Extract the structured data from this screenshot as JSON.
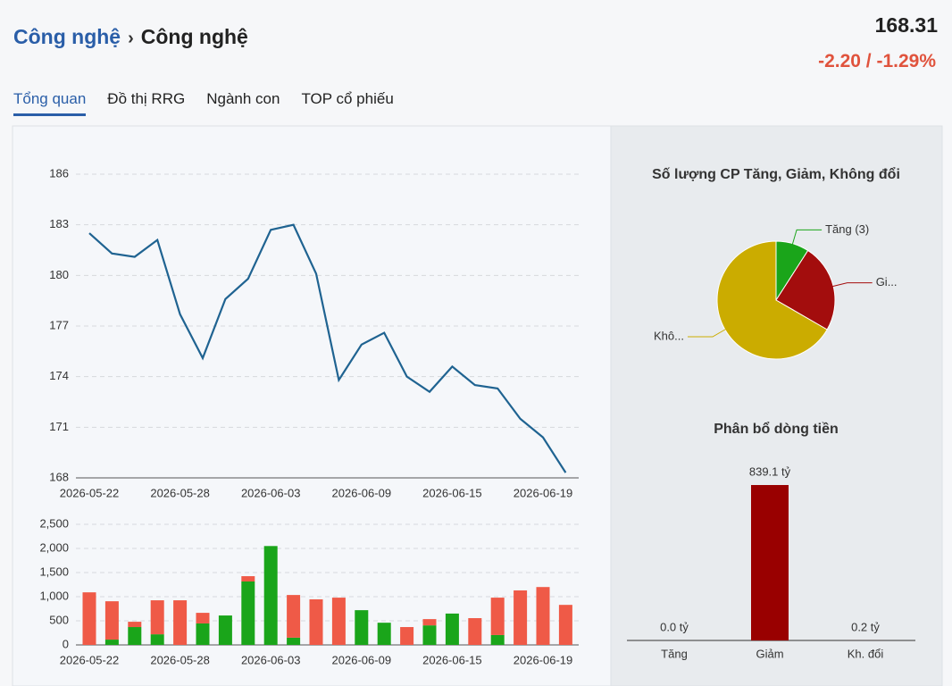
{
  "header": {
    "breadcrumb": [
      "Công nghệ",
      "Công nghệ"
    ],
    "price": "168.31",
    "change": "-2.20 / -1.29%"
  },
  "tabs": [
    "Tổng quan",
    "Đồ thị RRG",
    "Ngành con",
    "TOP cổ phiếu"
  ],
  "chart_data": [
    {
      "type": "line",
      "categories": [
        "2026-05-22",
        null,
        null,
        null,
        "2026-05-28",
        null,
        null,
        null,
        "2026-06-03",
        null,
        null,
        null,
        "2026-06-09",
        null,
        null,
        null,
        "2026-06-15",
        null,
        null,
        null,
        "2026-06-19",
        null
      ],
      "values": [
        182.5,
        181.3,
        181.1,
        182.1,
        177.7,
        175.1,
        178.6,
        179.8,
        182.7,
        183.0,
        180.1,
        173.8,
        175.9,
        176.6,
        174.0,
        173.1,
        174.6,
        173.5,
        173.3,
        171.5,
        170.4,
        168.31
      ],
      "color": "#1f6391",
      "ylim": [
        168,
        186
      ],
      "yticks": [
        168,
        171,
        174,
        177,
        180,
        183,
        186
      ],
      "grid": true
    },
    {
      "type": "stacked-bar",
      "categories": [
        "2026-05-22",
        null,
        null,
        null,
        "2026-05-28",
        null,
        null,
        null,
        "2026-06-03",
        null,
        null,
        null,
        "2026-06-09",
        null,
        null,
        null,
        "2026-06-15",
        null,
        null,
        null,
        "2026-06-19",
        null
      ],
      "series": [
        {
          "color": "#1aa51a",
          "values": [
            0,
            110,
            370,
            220,
            0,
            445,
            610,
            1315,
            2050,
            150,
            0,
            0,
            720,
            460,
            0,
            405,
            650,
            0,
            205,
            0,
            0,
            0
          ]
        },
        {
          "color": "#ef5a47",
          "values": [
            1090,
            795,
            110,
            705,
            925,
            220,
            0,
            110,
            0,
            885,
            945,
            980,
            0,
            0,
            370,
            130,
            0,
            555,
            775,
            1130,
            1200,
            830
          ]
        }
      ],
      "ylim": [
        0,
        2500
      ],
      "yticks": [
        0,
        500,
        {
          "value": 1000,
          "label": "1,000"
        },
        {
          "value": 1500,
          "label": "1,500"
        },
        {
          "value": 2000,
          "label": "2,000"
        },
        {
          "value": 2500,
          "label": "2,500"
        }
      ],
      "grid": true
    },
    {
      "type": "pie",
      "title": "Số lượng CP Tăng, Giảm, Không đổi",
      "categories": [
        "Tăng (3)",
        "Gi...",
        "Khô..."
      ],
      "values": [
        3,
        8,
        22
      ],
      "colors": [
        "#1aa51a",
        "#a30d0d",
        "#cbac00"
      ]
    },
    {
      "type": "bar",
      "title": "Phân bổ dòng tiền",
      "categories": [
        "Tăng",
        "Giảm",
        "Kh. đổi"
      ],
      "values": [
        0.0,
        839.1,
        0.2
      ],
      "value_labels": [
        "0.0 tỷ",
        "839.1 tỷ",
        "0.2 tỷ"
      ],
      "color": "#990000"
    }
  ]
}
